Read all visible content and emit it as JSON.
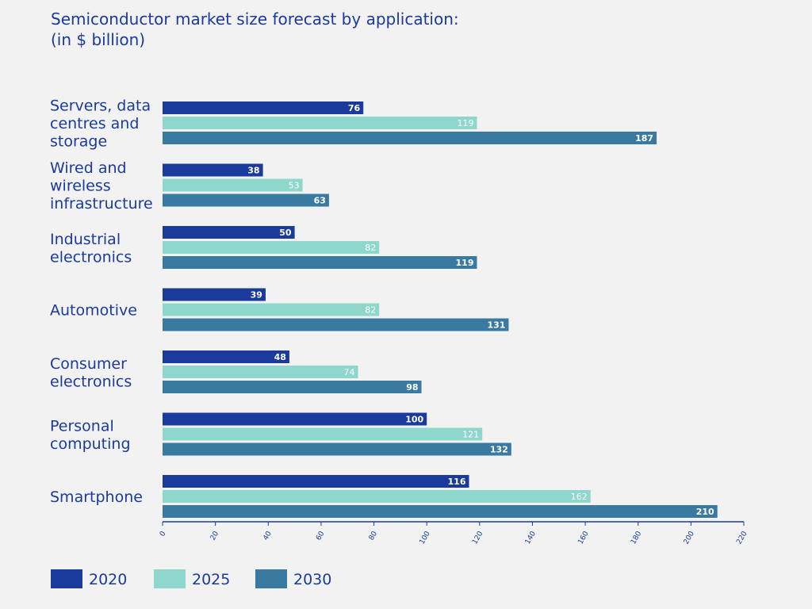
{
  "chart_data": {
    "type": "bar",
    "orientation": "horizontal",
    "title": [
      "Semiconductor market size forecast by application:",
      "(in $ billion)"
    ],
    "categories": [
      [
        "Servers, data",
        "centres and",
        "storage"
      ],
      [
        "Wired and",
        "wireless",
        "infrastructure"
      ],
      [
        "Industrial",
        "electronics"
      ],
      [
        "Automotive"
      ],
      [
        "Consumer",
        "electronics"
      ],
      [
        "Personal",
        "computing"
      ],
      [
        "Smartphone"
      ]
    ],
    "series": [
      {
        "name": "2020",
        "color": "#1a3a9c",
        "values": [
          76,
          38,
          50,
          39,
          48,
          100,
          116
        ]
      },
      {
        "name": "2025",
        "color": "#8fd6cc",
        "values": [
          119,
          53,
          82,
          82,
          74,
          121,
          162
        ]
      },
      {
        "name": "2030",
        "color": "#3a7aa0",
        "values": [
          187,
          63,
          119,
          131,
          98,
          132,
          210
        ]
      }
    ],
    "xlim": [
      0,
      220
    ],
    "xticks": [
      0,
      20,
      40,
      60,
      80,
      100,
      120,
      140,
      160,
      180,
      200,
      220
    ],
    "legend_position": "bottom-left",
    "grid": false,
    "data_labels": true
  }
}
